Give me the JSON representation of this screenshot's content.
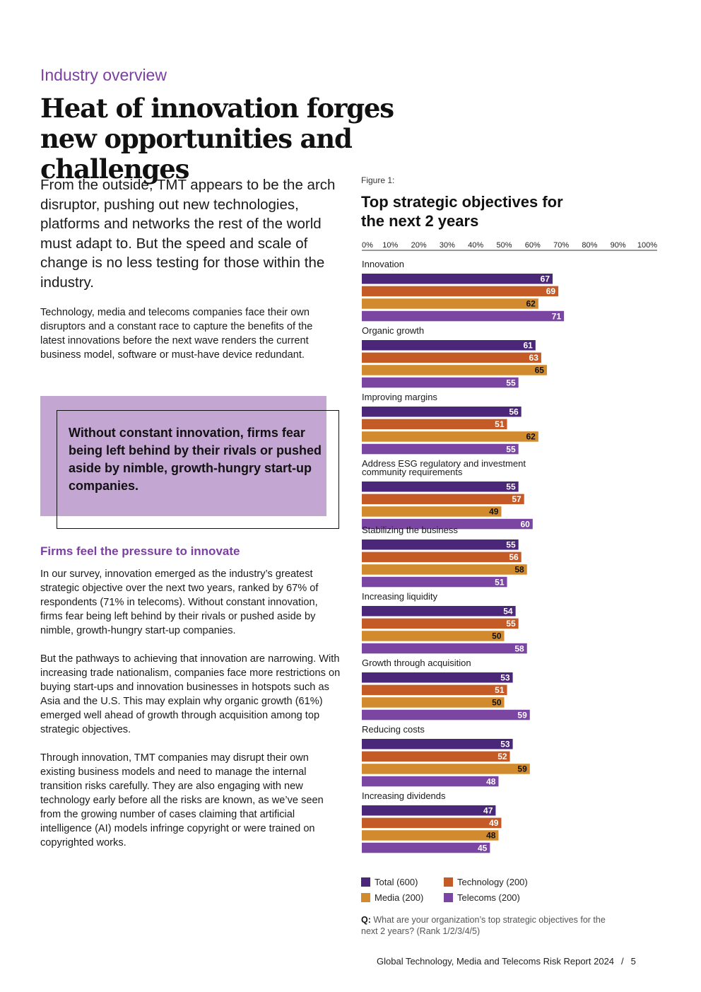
{
  "header": {
    "kicker": "Industry overview",
    "title": "Heat of innovation forges new opportunities and challenges"
  },
  "lead": "From the outside, TMT appears to be the arch disruptor, pushing out new technologies, platforms and networks the rest of the world must adapt to. But the speed and scale of change is no less testing for those within the industry.",
  "body1": "Technology, media and telecoms companies face their own disruptors and a constant race to capture the benefits of the latest innovations before the next wave renders the current business model, software or must-have device redundant.",
  "callout": "Without constant innovation, firms fear being left behind by their rivals or pushed aside by nimble, growth-hungry start-up companies.",
  "section": {
    "heading": "Firms feel the pressure to innovate",
    "paragraphs": [
      "In our survey, innovation emerged as the industry’s greatest strategic objective over the next two years, ranked by 67% of respondents (71% in telecoms). Without constant innovation, firms fear being left behind by their rivals or pushed aside by nimble, growth-hungry start-up companies.",
      "But the pathways to achieving that innovation are narrowing. With increasing trade nationalism, companies face more restrictions on buying start-ups and innovation businesses in hotspots such as Asia and the U.S. This may explain why organic growth (61%) emerged well ahead of growth through acquisition among top strategic objectives.",
      "Through innovation, TMT companies may disrupt their own existing business models and need to manage the internal transition risks carefully. They are also engaging with new technology early before all the risks are known, as we’ve seen from the growing number of cases claiming that artificial intelligence (AI) models infringe copyright or were trained on copyrighted works."
    ]
  },
  "figure": {
    "label": "Figure 1:",
    "title": "Top strategic objectives for the next 2 years",
    "question_prefix": "Q:",
    "question": "What are your organization’s top strategic objectives for the next 2 years? (Rank 1/2/3/4/5)"
  },
  "chart_data": {
    "type": "bar",
    "orientation": "horizontal",
    "title": "Top strategic objectives for the next 2 years",
    "xlim": [
      0,
      100
    ],
    "ticks": [
      "0%",
      "10%",
      "20%",
      "30%",
      "40%",
      "50%",
      "60%",
      "70%",
      "80%",
      "90%",
      "100%"
    ],
    "categories": [
      [
        "Innovation"
      ],
      [
        "Organic growth"
      ],
      [
        "Improving margins"
      ],
      [
        "Address ESG regulatory and investment",
        "community requirements"
      ],
      [
        "Stabilizing the business"
      ],
      [
        "Increasing liquidity"
      ],
      [
        "Growth through acquisition"
      ],
      [
        "Reducing costs"
      ],
      [
        "Increasing dividends"
      ]
    ],
    "series": [
      {
        "name": "Total (600)",
        "color": "#4b2779",
        "label_color": "#ffffff",
        "values": [
          67,
          61,
          56,
          55,
          55,
          54,
          53,
          53,
          47
        ]
      },
      {
        "name": "Technology (200)",
        "color": "#c45a26",
        "label_color": "#ffffff",
        "values": [
          69,
          63,
          51,
          57,
          56,
          55,
          51,
          52,
          49
        ]
      },
      {
        "name": "Media (200)",
        "color": "#d18a2e",
        "label_color": "#111111",
        "values": [
          62,
          65,
          62,
          49,
          58,
          50,
          50,
          59,
          48
        ]
      },
      {
        "name": "Telecoms (200)",
        "color": "#7a46a2",
        "label_color": "#ffffff",
        "values": [
          71,
          55,
          55,
          60,
          51,
          58,
          59,
          48,
          45
        ]
      }
    ],
    "legend": "bottom",
    "grid": false
  },
  "footer": {
    "report": "Global Technology, Media and Telecoms Risk Report 2024",
    "separator": "/",
    "page": "5"
  }
}
